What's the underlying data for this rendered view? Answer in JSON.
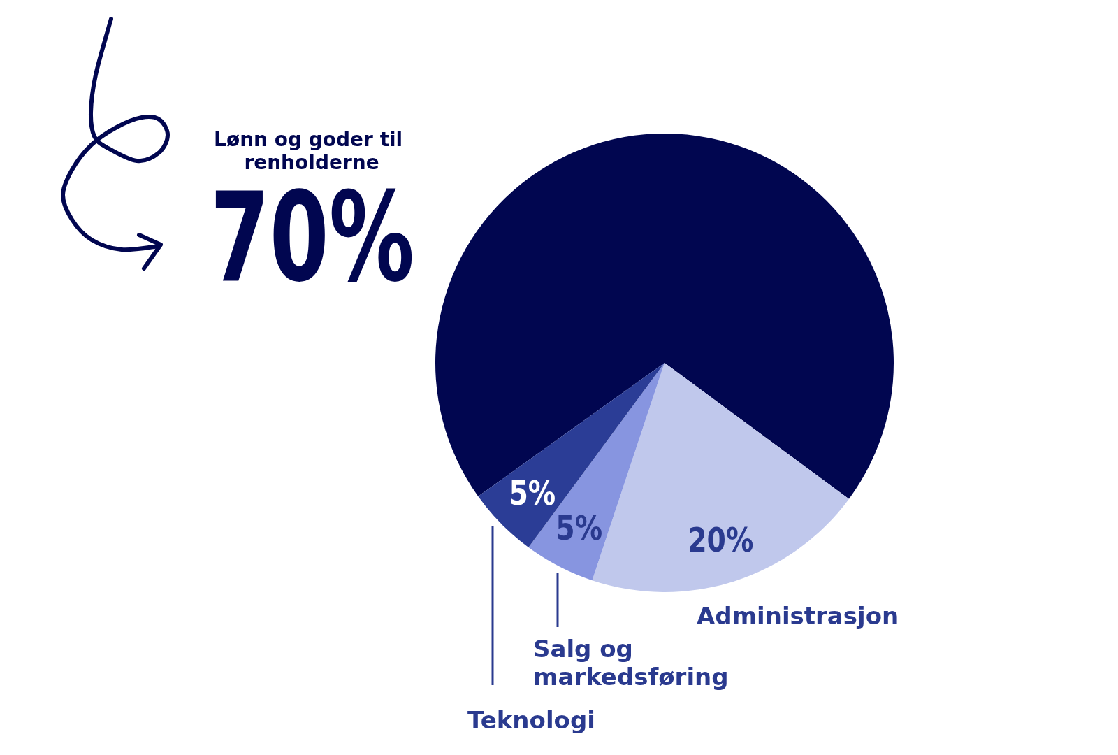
{
  "chart_data": {
    "type": "pie",
    "categories": [
      "Lønn og goder til renholderne",
      "Administrasjon",
      "Salg og markedsføring",
      "Teknologi"
    ],
    "values": [
      70,
      20,
      5,
      5
    ],
    "colors": [
      "#010650",
      "#c0c8ec",
      "#8795e0",
      "#2b3d96"
    ],
    "value_labels": [
      "70%",
      "20%",
      "5%",
      "5%"
    ]
  }
}
